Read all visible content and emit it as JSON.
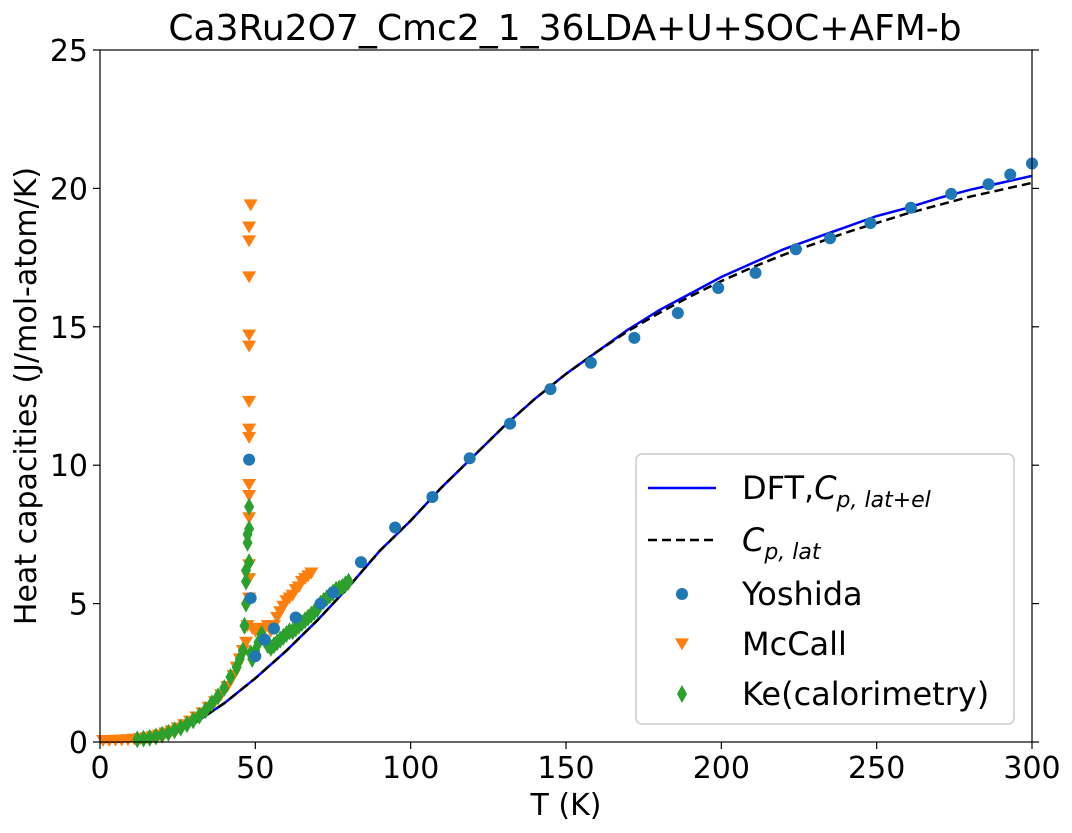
{
  "chart_data": {
    "type": "scatter",
    "title": "Ca3Ru2O7_Cmc2_1_36LDA+U+SOC+AFM-b",
    "xlabel": "T (K)",
    "ylabel": "Heat capacities (J/mol-atom/K)",
    "xlim": [
      0,
      300
    ],
    "ylim": [
      0,
      25
    ],
    "xticks": [
      "0",
      "50",
      "100",
      "150",
      "200",
      "250",
      "300"
    ],
    "yticks": [
      "0",
      "5",
      "10",
      "15",
      "20",
      "25"
    ],
    "grid": false,
    "legend_position": "lower-right",
    "legend": {
      "dft": {
        "prefix": "DFT,",
        "symbol": "C",
        "subscript": "p, lat+el"
      },
      "lat": {
        "symbol": "C",
        "subscript": "p, lat"
      },
      "yoshida": "Yoshida",
      "mccall": "McCall",
      "ke": "Ke(calorimetry)"
    },
    "colors": {
      "dft": "#0000ff",
      "lat": "#000000",
      "yoshida": "#1f77b4",
      "mccall": "#ff7f0e",
      "ke": "#2ca02c"
    },
    "series": [
      {
        "name": "DFT,Cp,lat+el",
        "kind": "line",
        "x": [
          0,
          10,
          20,
          30,
          40,
          50,
          60,
          70,
          80,
          90,
          100,
          110,
          120,
          130,
          140,
          150,
          160,
          170,
          180,
          190,
          200,
          210,
          220,
          230,
          240,
          250,
          260,
          270,
          280,
          290,
          300
        ],
        "y": [
          0,
          0.03,
          0.2,
          0.65,
          1.4,
          2.3,
          3.3,
          4.4,
          5.6,
          6.9,
          8.0,
          9.2,
          10.3,
          11.4,
          12.4,
          13.3,
          14.1,
          14.9,
          15.6,
          16.2,
          16.8,
          17.3,
          17.8,
          18.2,
          18.6,
          19.0,
          19.3,
          19.65,
          19.95,
          20.2,
          20.45
        ]
      },
      {
        "name": "Cp,lat",
        "kind": "line",
        "x": [
          0,
          10,
          20,
          30,
          40,
          50,
          60,
          70,
          80,
          90,
          100,
          110,
          120,
          130,
          140,
          150,
          160,
          170,
          180,
          190,
          200,
          210,
          220,
          230,
          240,
          250,
          260,
          270,
          280,
          290,
          300
        ],
        "y": [
          0,
          0.03,
          0.2,
          0.65,
          1.4,
          2.3,
          3.3,
          4.4,
          5.6,
          6.9,
          8.0,
          9.2,
          10.3,
          11.4,
          12.4,
          13.3,
          14.1,
          14.85,
          15.5,
          16.1,
          16.65,
          17.15,
          17.6,
          18.0,
          18.4,
          18.75,
          19.1,
          19.4,
          19.7,
          19.95,
          20.2
        ]
      },
      {
        "name": "Yoshida",
        "kind": "circle",
        "x": [
          48,
          48.5,
          50,
          53,
          56,
          63,
          71,
          75,
          84,
          95,
          107,
          119,
          132,
          145,
          158,
          172,
          186,
          199,
          211,
          224,
          235,
          248,
          261,
          274,
          286,
          293,
          300
        ],
        "y": [
          10.2,
          5.2,
          3.1,
          3.7,
          4.1,
          4.5,
          5.0,
          5.4,
          6.5,
          7.75,
          8.85,
          10.25,
          11.5,
          12.75,
          13.7,
          14.6,
          15.5,
          16.4,
          16.95,
          17.8,
          18.2,
          18.75,
          19.3,
          19.8,
          20.15,
          20.5,
          20.9
        ]
      },
      {
        "name": "McCall",
        "kind": "triangle-down",
        "x": [
          1,
          3,
          5,
          7,
          9,
          11,
          13,
          15,
          17,
          19,
          21,
          23,
          25,
          27,
          29,
          31,
          33,
          35,
          37,
          39,
          41,
          43,
          44,
          45,
          46,
          47,
          47.5,
          48,
          48,
          48,
          48,
          48,
          48,
          48,
          48,
          48,
          48,
          48,
          48,
          48,
          48,
          48.5,
          49,
          50,
          51,
          52,
          53,
          54,
          55,
          56,
          57,
          58,
          59,
          60,
          61,
          62,
          63,
          64,
          65,
          66,
          67,
          68
        ],
        "y": [
          0.05,
          0.05,
          0.06,
          0.07,
          0.08,
          0.1,
          0.12,
          0.15,
          0.2,
          0.25,
          0.32,
          0.4,
          0.5,
          0.62,
          0.75,
          0.9,
          1.05,
          1.25,
          1.45,
          1.7,
          2.0,
          2.4,
          2.7,
          3.0,
          3.3,
          3.6,
          4.2,
          5.2,
          5.9,
          6.4,
          8.1,
          8.9,
          9.3,
          11.0,
          11.3,
          12.3,
          14.3,
          14.7,
          16.8,
          18.1,
          18.6,
          19.4,
          4.1,
          4.0,
          4.0,
          4.1,
          4.1,
          4.2,
          4.0,
          4.2,
          4.5,
          4.7,
          4.9,
          5.1,
          5.2,
          5.3,
          5.5,
          5.6,
          5.8,
          5.9,
          6.0,
          6.1
        ]
      },
      {
        "name": "Ke(calorimetry)",
        "kind": "diamond",
        "x": [
          12,
          14,
          16,
          18,
          20,
          22,
          24,
          26,
          28,
          30,
          32,
          34,
          36,
          38,
          40,
          42,
          44,
          45,
          46,
          46.5,
          47,
          47,
          47,
          47.5,
          47.5,
          48,
          48,
          48,
          48.5,
          49,
          50,
          51,
          52,
          53,
          54,
          55,
          56,
          57,
          58,
          59,
          60,
          61,
          62,
          63,
          64,
          65,
          66,
          67,
          68,
          69,
          70,
          71,
          72,
          73,
          74,
          75,
          76,
          77,
          78,
          79,
          80
        ],
        "y": [
          0.1,
          0.12,
          0.15,
          0.2,
          0.26,
          0.33,
          0.42,
          0.52,
          0.64,
          0.78,
          0.95,
          1.15,
          1.4,
          1.65,
          1.95,
          2.35,
          2.7,
          3.0,
          3.3,
          4.2,
          5.0,
          5.8,
          6.2,
          7.2,
          7.5,
          8.5,
          7.7,
          6.5,
          3.2,
          3.0,
          3.3,
          3.6,
          3.9,
          3.7,
          3.5,
          3.4,
          3.5,
          3.6,
          3.7,
          3.8,
          3.9,
          4.0,
          4.0,
          4.1,
          4.2,
          4.3,
          4.4,
          4.5,
          4.6,
          4.7,
          4.8,
          5.0,
          5.1,
          5.2,
          5.3,
          5.4,
          5.5,
          5.55,
          5.6,
          5.7,
          5.8
        ]
      }
    ]
  }
}
